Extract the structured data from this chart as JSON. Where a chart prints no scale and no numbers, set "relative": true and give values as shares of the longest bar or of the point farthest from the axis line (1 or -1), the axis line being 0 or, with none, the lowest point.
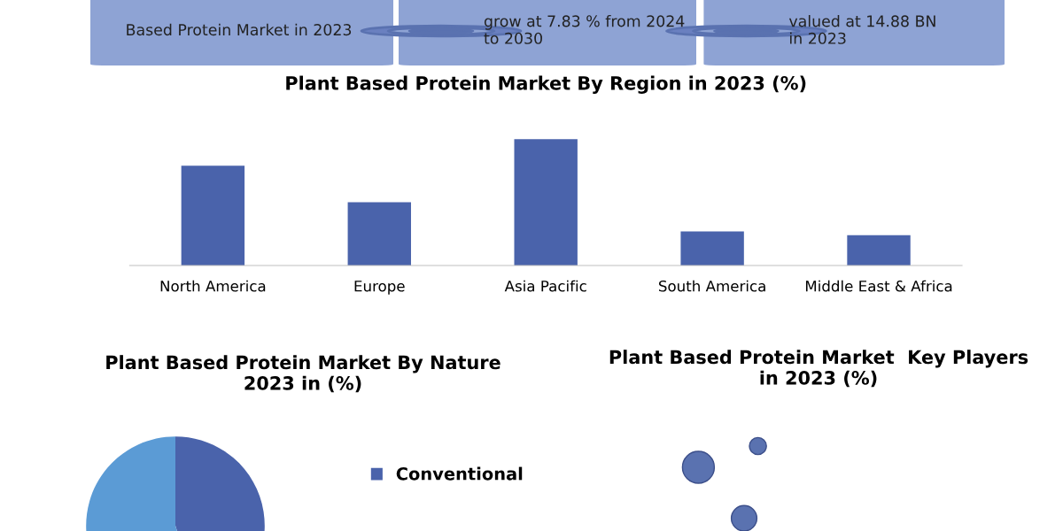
{
  "chart_data": [
    {
      "type": "other",
      "annotations": [
        "Based Protein Market in 2023",
        "grow at 7.83 % from 2024\nto 2030",
        "valued at 14.88 BN\nin 2023"
      ]
    },
    {
      "type": "bar",
      "title": "Plant Based Protein Market By Region in 2023 (%)",
      "categories": [
        "North America",
        "Europe",
        "Asia Pacific",
        "South America",
        "Middle East & Africa"
      ],
      "values": [
        0.79,
        0.5,
        1,
        0.27,
        0.24
      ],
      "color": "#4a63ab",
      "relative": true
    },
    {
      "type": "pie",
      "title": "Plant Based Protein Market By Nature\n2023 in (%)",
      "categories": [
        "Conventional",
        null
      ],
      "values": [
        45,
        55
      ],
      "colors": [
        "#4a63ab",
        "#5b9bd5"
      ],
      "legend": "right"
    },
    {
      "type": "other",
      "title": "Plant Based Protein Market  Key Players\nin 2023 (%)"
    }
  ]
}
